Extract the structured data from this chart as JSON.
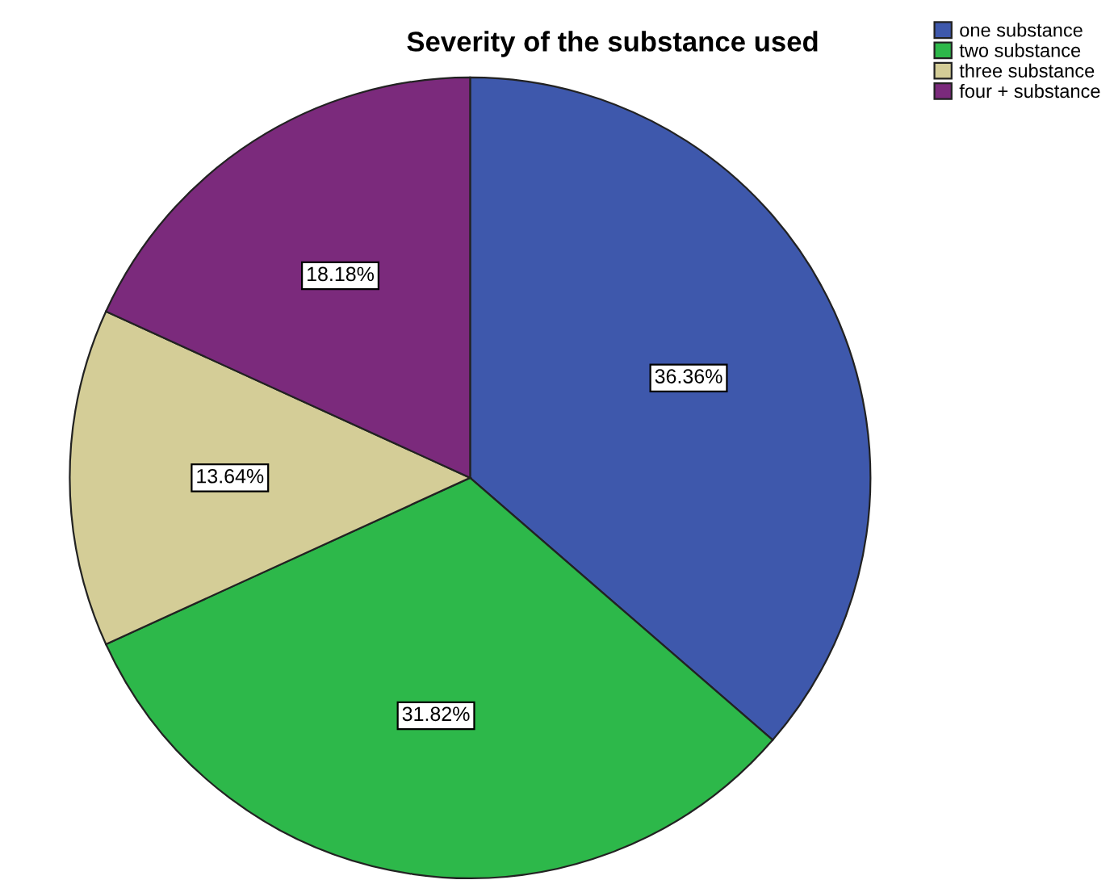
{
  "chart_data": {
    "type": "pie",
    "title": "Severity of the substance used",
    "categories": [
      "one substance",
      "two substance",
      "three substance",
      "four + substance"
    ],
    "values": [
      36.36,
      31.82,
      13.64,
      18.18
    ],
    "colors": [
      "#3e58ac",
      "#2db84a",
      "#d4cd97",
      "#7b2a7c"
    ],
    "value_labels": [
      "36.36%",
      "31.82%",
      "13.64%",
      "18.18%"
    ],
    "legend": "top right"
  }
}
